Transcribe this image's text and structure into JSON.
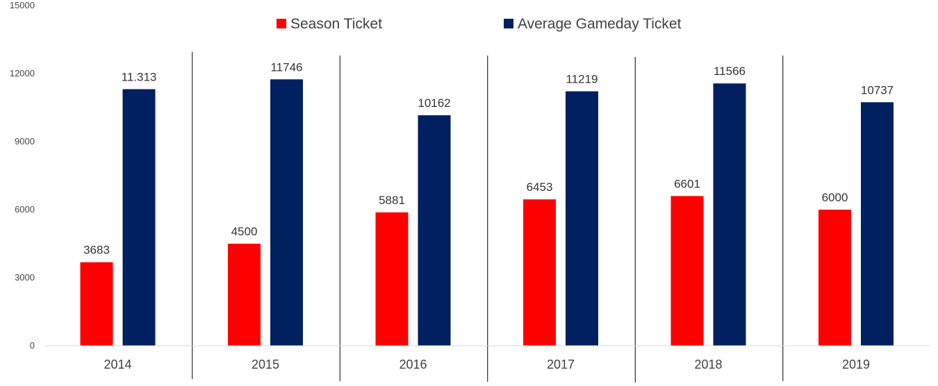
{
  "chart_data": {
    "type": "bar",
    "categories": [
      "2014",
      "2015",
      "2016",
      "2017",
      "2018",
      "2019"
    ],
    "series": [
      {
        "name": "Season Ticket",
        "color": "#ff0000",
        "values": [
          3683,
          4500,
          5881,
          6453,
          6601,
          6000
        ],
        "labels": [
          "3683",
          "4500",
          "5881",
          "6453",
          "6601",
          "6000"
        ]
      },
      {
        "name": "Average Gameday Ticket",
        "color": "#002060",
        "values": [
          11313,
          11746,
          10162,
          11219,
          11566,
          10737
        ],
        "labels": [
          "11.313",
          "11746",
          "10162",
          "11219",
          "11566",
          "10737"
        ]
      }
    ],
    "yticks": [
      "0",
      "3000",
      "6000",
      "9000",
      "12000",
      "15000"
    ],
    "ylim": [
      0,
      15000
    ],
    "grid": false,
    "legend_position": "top-center",
    "category_separators": true
  }
}
